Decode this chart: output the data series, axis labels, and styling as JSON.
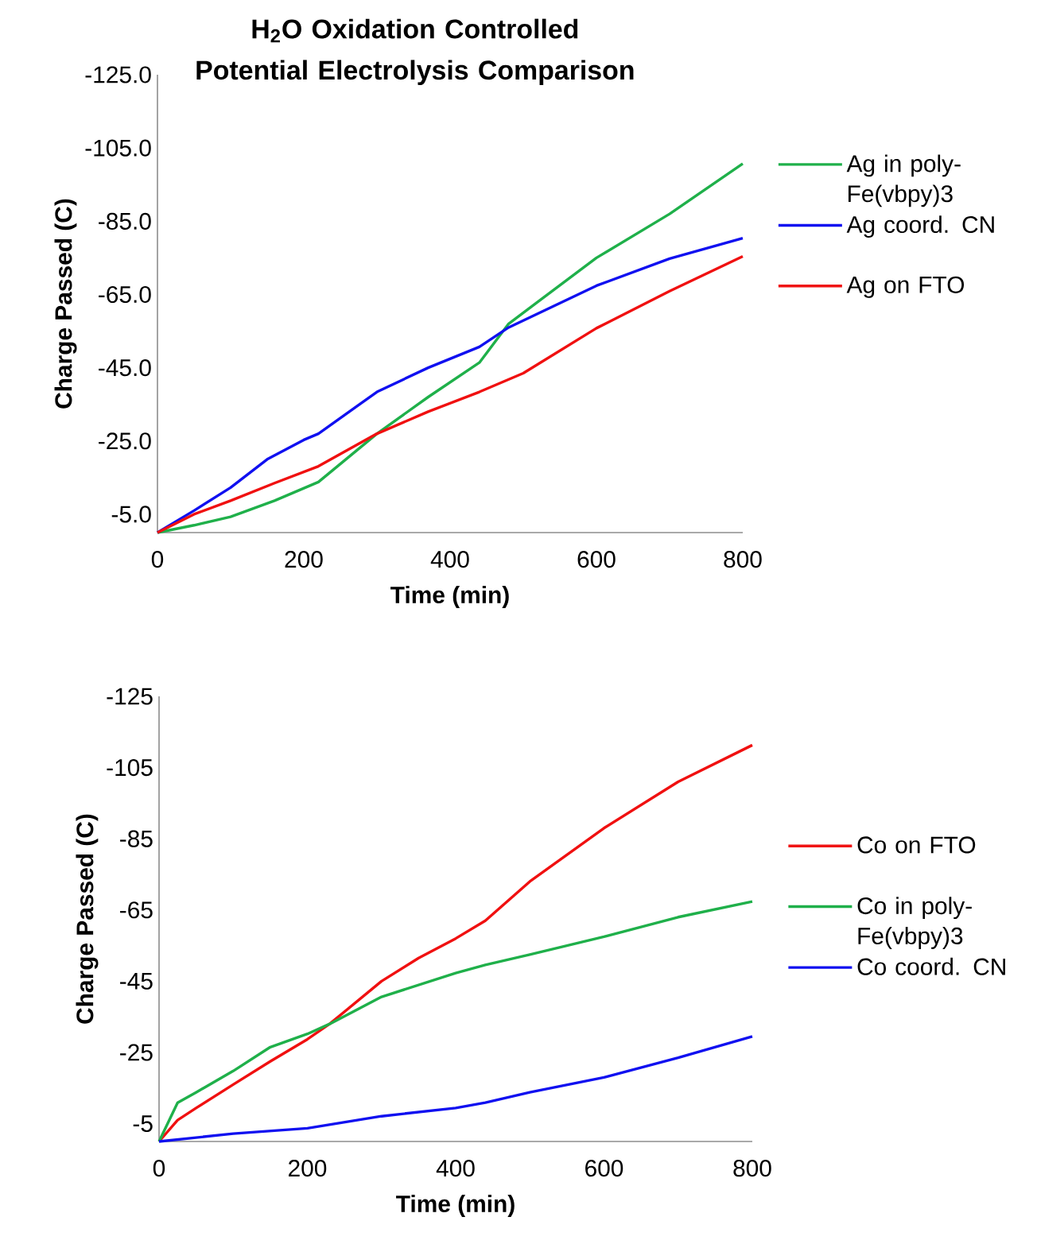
{
  "chart_data": [
    {
      "type": "line",
      "title": "H$_{2}$O Oxidation Controlled Potential Electrolysis Comparison",
      "xlabel": "Time (min)",
      "ylabel": "Charge Passed (C)",
      "xlim": [
        0,
        800
      ],
      "xticks": [
        0,
        200,
        400,
        600,
        800
      ],
      "ylim": [
        0,
        -125
      ],
      "yticks": [
        {
          "value": -5,
          "label": "-5.0"
        },
        {
          "value": -25,
          "label": "-25.0"
        },
        {
          "value": -45,
          "label": "-45.0"
        },
        {
          "value": -65,
          "label": "-65.0"
        },
        {
          "value": -85,
          "label": "-85.0"
        },
        {
          "value": -105,
          "label": "-105.0"
        },
        {
          "value": -125,
          "label": "-125.0"
        }
      ],
      "legend": "right",
      "marker": "none",
      "line_style": "solid",
      "series": [
        {
          "name": "Ag in poly-Fe(vbpy)3",
          "color": "#1fb04a",
          "x": [
            0,
            50,
            100,
            160,
            220,
            300,
            370,
            440,
            480,
            520,
            600,
            700,
            800
          ],
          "values": [
            0,
            -2,
            -4.3,
            -8.7,
            -13.8,
            -27,
            -37,
            -46.4,
            -57,
            -63,
            -75,
            -87,
            -100.7
          ]
        },
        {
          "name": "Ag coord. CN",
          "color": "#1010f0",
          "x": [
            0,
            50,
            100,
            150,
            200,
            220,
            300,
            370,
            440,
            480,
            600,
            700,
            800
          ],
          "values": [
            0,
            -6,
            -12.3,
            -20,
            -25.3,
            -27,
            -38.4,
            -45,
            -50.7,
            -56,
            -67.4,
            -74.8,
            -80.4
          ]
        },
        {
          "name": "Ag on FTO",
          "color": "#f01010",
          "x": [
            0,
            50,
            100,
            160,
            220,
            300,
            370,
            440,
            500,
            600,
            700,
            800
          ],
          "values": [
            0,
            -5,
            -8.7,
            -13.5,
            -18.1,
            -27,
            -33,
            -38.4,
            -43.5,
            -55.8,
            -65.9,
            -75.4
          ]
        }
      ]
    },
    {
      "type": "line",
      "xlabel": "Time (min)",
      "ylabel": "Charge Passed (C)",
      "xlim": [
        0,
        800
      ],
      "xticks": [
        0,
        200,
        400,
        600,
        800
      ],
      "ylim": [
        0,
        -125
      ],
      "yticks": [
        -5,
        -25,
        -45,
        -65,
        -85,
        -105,
        -125
      ],
      "legend": "right",
      "marker": "none",
      "line_style": "solid",
      "series": [
        {
          "name": "Co on FTO",
          "color": "#f01010",
          "x": [
            0,
            25,
            50,
            100,
            150,
            200,
            230,
            300,
            350,
            400,
            440,
            500,
            600,
            700,
            800
          ],
          "values": [
            0,
            -6,
            -9.4,
            -16,
            -22.5,
            -28.7,
            -33,
            -45,
            -51.5,
            -57,
            -62,
            -73,
            -88,
            -101,
            -111.3
          ]
        },
        {
          "name": "Co in poly-Fe(vbpy)3",
          "color": "#1fb04a",
          "x": [
            0,
            25,
            50,
            100,
            150,
            200,
            230,
            300,
            400,
            440,
            500,
            600,
            700,
            800
          ],
          "values": [
            0,
            -10.9,
            -13.8,
            -19.8,
            -26.5,
            -30.2,
            -33,
            -40.6,
            -47.3,
            -49.6,
            -52.5,
            -57.5,
            -63,
            -67.4
          ]
        },
        {
          "name": "Co coord. CN",
          "color": "#1010f0",
          "x": [
            0,
            100,
            200,
            300,
            400,
            440,
            500,
            600,
            700,
            800
          ],
          "values": [
            0,
            -2.2,
            -3.7,
            -7.1,
            -9.4,
            -10.9,
            -13.8,
            -18,
            -23.5,
            -29.5
          ]
        }
      ]
    }
  ]
}
